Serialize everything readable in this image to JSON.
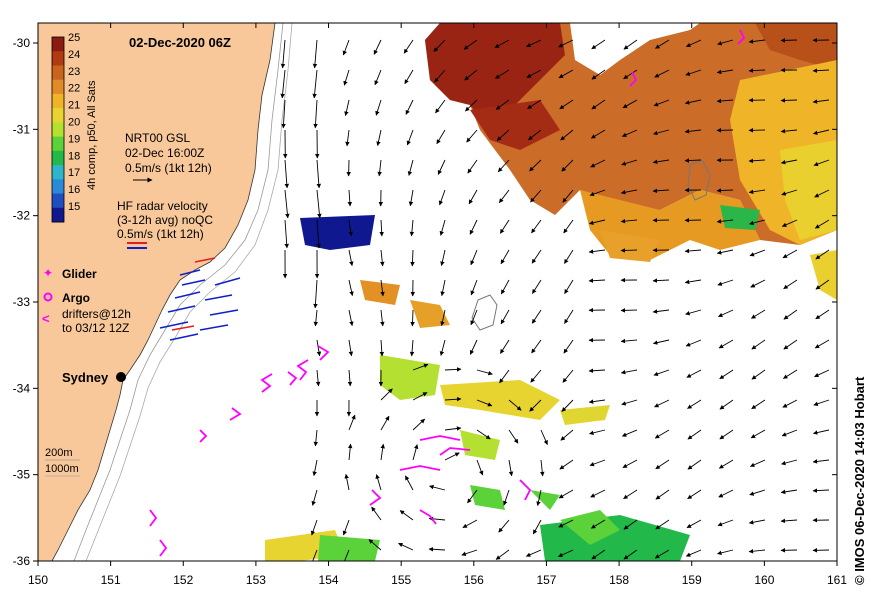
{
  "title": "02-Dec-2020 06Z",
  "colorbar": {
    "label": "4h comp, p50, All Sats",
    "ticks": [
      "25",
      "24",
      "23",
      "22",
      "21",
      "20",
      "19",
      "18",
      "17",
      "16",
      "15"
    ],
    "colors": [
      "#8b1a12",
      "#b23a12",
      "#c8641c",
      "#e08a28",
      "#f0b428",
      "#e8d430",
      "#b4e032",
      "#5cd23a",
      "#22b84a",
      "#30b4cc",
      "#2a8ad8",
      "#1f4ec0",
      "#101890"
    ]
  },
  "gsl_legend": {
    "line1": "NRT00 GSL",
    "line2": "02-Dec 16:00Z",
    "line3": "0.5m/s (1kt 12h)"
  },
  "radar_legend": {
    "line1": "HF radar velocity",
    "line2": "(3-12h avg) noQC",
    "line3": "0.5m/s (1kt 12h)"
  },
  "markers_legend": {
    "glider": "Glider",
    "argo": "Argo",
    "drifters_line1": "drifters@12h",
    "drifters_line2": "to 03/12 12Z"
  },
  "place": "Sydney",
  "depth_legend": {
    "a": "200m",
    "b": "1000m"
  },
  "x_ticks": [
    "150",
    "151",
    "152",
    "153",
    "154",
    "155",
    "156",
    "157",
    "158",
    "159",
    "160",
    "161"
  ],
  "y_ticks": [
    "-30",
    "-31",
    "-32",
    "-33",
    "-34",
    "-35",
    "-36"
  ],
  "credit": "© IMOS 06-Dec-2020 14:03 Hobart",
  "palette": {
    "land": "#f8c89a",
    "drifter": "#ff00ff",
    "radar_blue": "#1020c8",
    "radar_red": "#e02020"
  }
}
